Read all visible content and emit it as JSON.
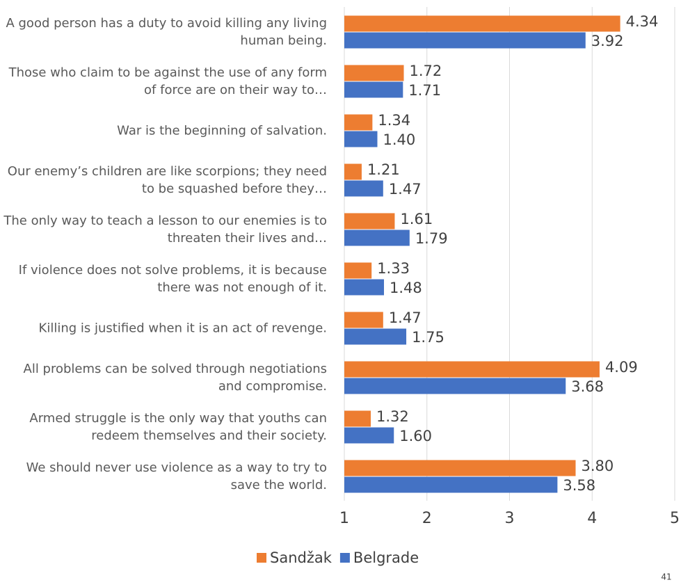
{
  "chart_data": {
    "type": "barh",
    "categories": [
      "A good person has a duty to avoid killing any living human being.",
      "Those who claim to be against the use of any form of force are on their way to…",
      "War is the beginning of salvation.",
      "Our enemy’s children are like scorpions; they need to be squashed before they…",
      "The only way to teach a lesson to our enemies is to threaten their lives and…",
      "If violence does not solve problems, it is because there was not enough of it.",
      "Killing is justified when it is an act of revenge.",
      "All problems can be solved through negotiations and compromise.",
      "Armed struggle is the only way that youths can redeem themselves and their society.",
      "We should never use violence as a way to try to save the world."
    ],
    "series": [
      {
        "name": "Sandžak",
        "color": "#ed7d31",
        "values": [
          4.34,
          1.72,
          1.34,
          1.21,
          1.61,
          1.33,
          1.47,
          4.09,
          1.32,
          3.8
        ],
        "value_labels": [
          "4.34",
          "1.72",
          "1.34",
          "1.21",
          "1.61",
          "1.33",
          "1.47",
          "4.09",
          "1.32",
          "3.80"
        ]
      },
      {
        "name": "Belgrade",
        "color": "#4472c4",
        "values": [
          3.92,
          1.71,
          1.4,
          1.47,
          1.79,
          1.48,
          1.75,
          3.68,
          1.6,
          3.58
        ],
        "value_labels": [
          "3.92",
          "1.71",
          "1.40",
          "1.47",
          "1.79",
          "1.48",
          "1.75",
          "3.68",
          "1.60",
          "3.58"
        ]
      }
    ],
    "xlim": [
      1,
      5
    ],
    "xticks": [
      1,
      2,
      3,
      4,
      5
    ],
    "grid": true,
    "legend": "bottom",
    "page_number": "41"
  }
}
